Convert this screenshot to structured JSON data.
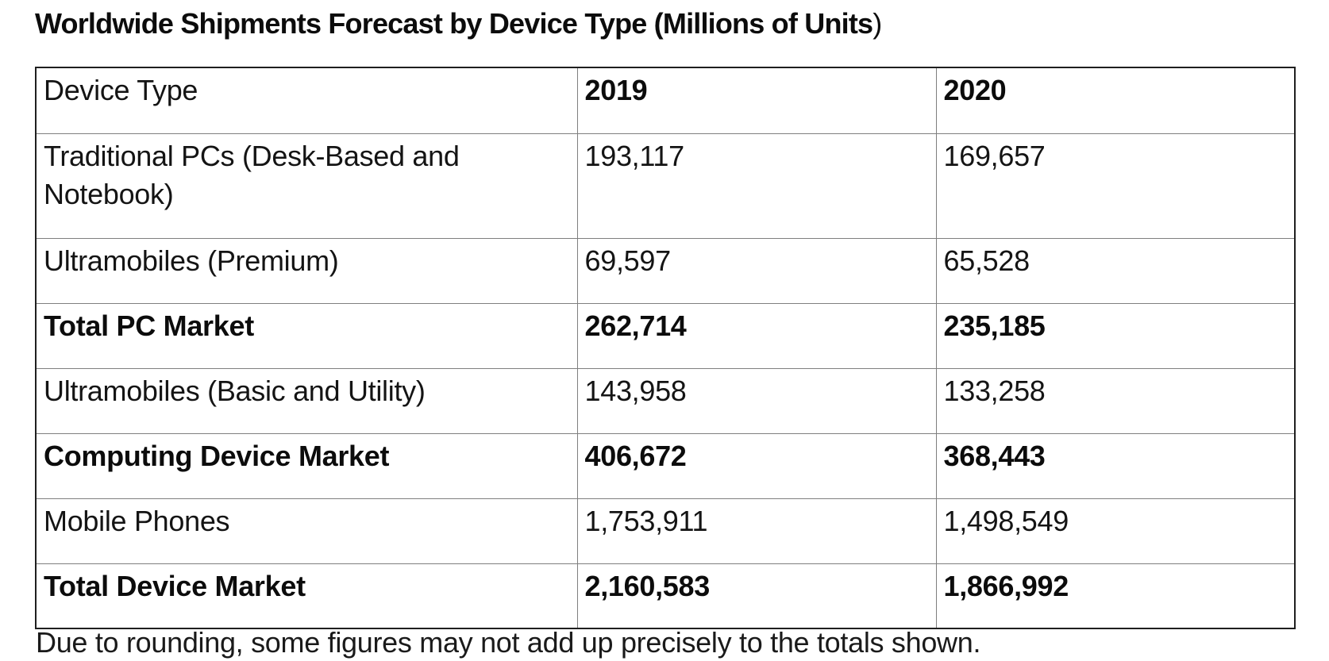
{
  "page": {
    "background": "#ffffff",
    "text_color": "#141414",
    "outer_border_color": "#1f1f1f",
    "inner_border_color": "#7f7f7f"
  },
  "title": {
    "bold_part": "Worldwide Shipments Forecast by Device Type (Millions of Units",
    "regular_part": ")"
  },
  "table": {
    "columns": [
      "Device Type",
      "2019",
      "2020"
    ],
    "rows": [
      {
        "label": "Traditional PCs (Desk-Based and Notebook)",
        "y2019": "193,117",
        "y2020": "169,657",
        "bold": false
      },
      {
        "label": "Ultramobiles (Premium)",
        "y2019": "69,597",
        "y2020": "65,528",
        "bold": false
      },
      {
        "label": "Total PC Market",
        "y2019": "262,714",
        "y2020": "235,185",
        "bold": true
      },
      {
        "label": "Ultramobiles (Basic and Utility)",
        "y2019": "143,958",
        "y2020": "133,258",
        "bold": false
      },
      {
        "label": "Computing Device Market",
        "y2019": "406,672",
        "y2020": "368,443",
        "bold": true
      },
      {
        "label": "Mobile Phones",
        "y2019": "1,753,911",
        "y2020": "1,498,549",
        "bold": false
      },
      {
        "label": "Total Device Market",
        "y2019": "2,160,583",
        "y2020": "1,866,992",
        "bold": true
      }
    ]
  },
  "footnote": {
    "text": "Due to rounding, some figures may not add up precisely to the totals shown.",
    "clipped_at_bottom": true
  }
}
